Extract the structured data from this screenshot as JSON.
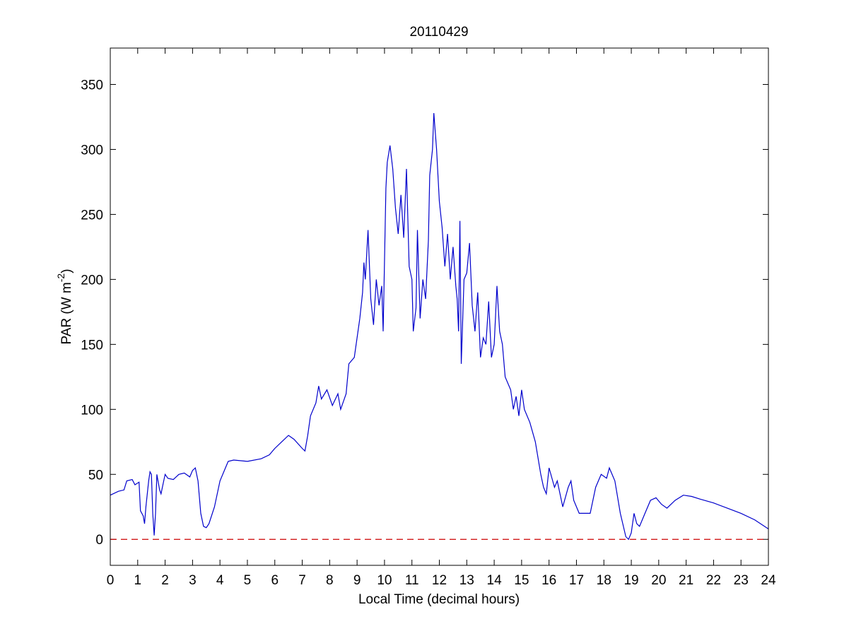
{
  "chart_data": {
    "type": "line",
    "title": "20110429",
    "xlabel": "Local Time (decimal hours)",
    "ylabel": {
      "text": "PAR (W m",
      "superscript": "-2",
      "suffix": ")"
    },
    "color": "#0000cc",
    "reference_line": {
      "value": 0,
      "color": "#cc0000",
      "style": "dashed"
    },
    "xlim": [
      0,
      24
    ],
    "ylim": [
      -20,
      378
    ],
    "xticks": [
      0,
      1,
      2,
      3,
      4,
      5,
      6,
      7,
      8,
      9,
      10,
      11,
      12,
      13,
      14,
      15,
      16,
      17,
      18,
      19,
      20,
      21,
      22,
      23,
      24
    ],
    "yticks": [
      0,
      50,
      100,
      150,
      200,
      250,
      300,
      350
    ],
    "x": [
      0,
      0.3,
      0.5,
      0.6,
      0.8,
      0.9,
      1.05,
      1.1,
      1.2,
      1.25,
      1.3,
      1.4,
      1.45,
      1.5,
      1.55,
      1.6,
      1.65,
      1.7,
      1.8,
      1.85,
      1.95,
      2.0,
      2.1,
      2.3,
      2.5,
      2.7,
      2.9,
      3.0,
      3.1,
      3.2,
      3.3,
      3.4,
      3.5,
      3.6,
      3.8,
      4.0,
      4.2,
      4.3,
      4.5,
      5.0,
      5.5,
      5.8,
      6.0,
      6.3,
      6.5,
      6.7,
      7.0,
      7.1,
      7.2,
      7.3,
      7.5,
      7.6,
      7.7,
      7.9,
      8.1,
      8.3,
      8.4,
      8.6,
      8.7,
      8.9,
      9.1,
      9.2,
      9.25,
      9.3,
      9.4,
      9.5,
      9.6,
      9.7,
      9.8,
      9.9,
      9.95,
      10.05,
      10.1,
      10.2,
      10.3,
      10.4,
      10.5,
      10.6,
      10.7,
      10.8,
      10.9,
      11.0,
      11.05,
      11.15,
      11.2,
      11.3,
      11.4,
      11.5,
      11.6,
      11.65,
      11.75,
      11.8,
      11.9,
      12.0,
      12.1,
      12.2,
      12.3,
      12.4,
      12.5,
      12.6,
      12.65,
      12.7,
      12.75,
      12.8,
      12.9,
      13.0,
      13.1,
      13.2,
      13.3,
      13.4,
      13.5,
      13.6,
      13.7,
      13.8,
      13.9,
      14.0,
      14.1,
      14.2,
      14.3,
      14.4,
      14.6,
      14.7,
      14.8,
      14.9,
      15.0,
      15.1,
      15.3,
      15.5,
      15.7,
      15.8,
      15.9,
      16.0,
      16.2,
      16.3,
      16.5,
      16.7,
      16.8,
      16.9,
      17.1,
      17.3,
      17.5,
      17.7,
      17.9,
      18.1,
      18.2,
      18.4,
      18.6,
      18.8,
      18.9,
      19.0,
      19.1,
      19.2,
      19.3,
      19.5,
      19.7,
      19.9,
      20.1,
      20.3,
      20.6,
      20.9,
      21.2,
      21.5,
      22.0,
      22.5,
      23.0,
      23.5,
      24.0
    ],
    "values": [
      34,
      37,
      38,
      45,
      46,
      42,
      44,
      22,
      18,
      12,
      25,
      45,
      52,
      50,
      20,
      3,
      20,
      50,
      38,
      35,
      45,
      50,
      47,
      46,
      50,
      51,
      48,
      53,
      55,
      45,
      20,
      10,
      9,
      12,
      25,
      45,
      55,
      60,
      61,
      60,
      62,
      65,
      70,
      76,
      80,
      77,
      70,
      68,
      80,
      95,
      105,
      118,
      108,
      115,
      103,
      112,
      100,
      112,
      135,
      140,
      170,
      190,
      213,
      200,
      238,
      185,
      165,
      200,
      180,
      195,
      160,
      270,
      290,
      303,
      285,
      255,
      235,
      265,
      232,
      285,
      210,
      200,
      160,
      178,
      238,
      170,
      200,
      185,
      230,
      280,
      300,
      328,
      300,
      260,
      240,
      210,
      235,
      200,
      225,
      195,
      185,
      160,
      245,
      135,
      200,
      205,
      228,
      180,
      160,
      190,
      140,
      155,
      150,
      183,
      140,
      150,
      195,
      160,
      150,
      125,
      115,
      100,
      110,
      95,
      115,
      100,
      90,
      75,
      50,
      40,
      35,
      55,
      40,
      45,
      25,
      40,
      45,
      30,
      20,
      20,
      20,
      40,
      50,
      47,
      55,
      45,
      20,
      2,
      0,
      5,
      20,
      12,
      10,
      20,
      30,
      32,
      27,
      24,
      30,
      34,
      33,
      31,
      28,
      24,
      20,
      15,
      8
    ]
  }
}
